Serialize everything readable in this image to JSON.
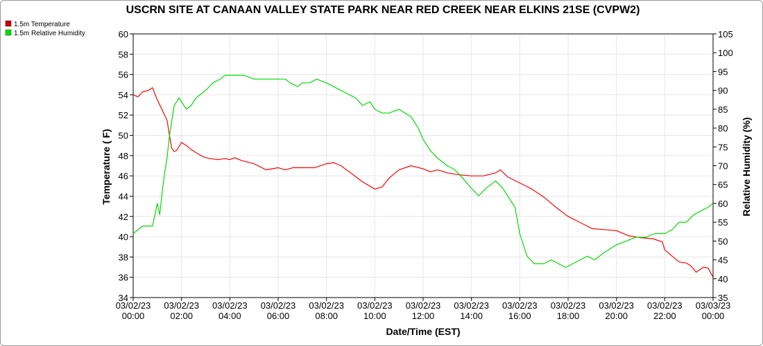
{
  "chart_data": {
    "type": "line",
    "title": "USCRN SITE AT CANAAN VALLEY STATE PARK NEAR RED CREEK NEAR ELKINS 21SE (CVPW2)",
    "xlabel": "Date/Time (EST)",
    "ylabel": "Temperature ( F)",
    "ylabel2": "Relative Humidity (%)",
    "ylim": [
      34,
      60
    ],
    "ylim2": [
      35,
      105
    ],
    "xlim_hours": [
      0,
      24
    ],
    "yticks": [
      "34",
      "36",
      "38",
      "40",
      "42",
      "44",
      "46",
      "48",
      "50",
      "52",
      "54",
      "56",
      "58",
      "60"
    ],
    "yticks2": [
      "35",
      "40",
      "45",
      "50",
      "55",
      "60",
      "65",
      "70",
      "75",
      "80",
      "85",
      "90",
      "95",
      "100",
      "105"
    ],
    "xticks": [
      {
        "date": "03/02/23",
        "time": "00:00"
      },
      {
        "date": "03/02/23",
        "time": "02:00"
      },
      {
        "date": "03/02/23",
        "time": "04:00"
      },
      {
        "date": "03/02/23",
        "time": "06:00"
      },
      {
        "date": "03/02/23",
        "time": "08:00"
      },
      {
        "date": "03/02/23",
        "time": "10:00"
      },
      {
        "date": "03/02/23",
        "time": "12:00"
      },
      {
        "date": "03/02/23",
        "time": "14:00"
      },
      {
        "date": "03/02/23",
        "time": "16:00"
      },
      {
        "date": "03/02/23",
        "time": "18:00"
      },
      {
        "date": "03/02/23",
        "time": "20:00"
      },
      {
        "date": "03/02/23",
        "time": "22:00"
      },
      {
        "date": "03/03/23",
        "time": "00:00"
      }
    ],
    "grid": true,
    "legend_placement": "top-left",
    "series": [
      {
        "name": "1.5m Temperature",
        "axis": "left",
        "color": "#ff0000",
        "x": [
          0,
          0.2,
          0.4,
          0.6,
          0.8,
          1.0,
          1.2,
          1.4,
          1.5,
          1.6,
          1.7,
          1.8,
          2.0,
          2.2,
          2.4,
          2.6,
          2.8,
          3.0,
          3.2,
          3.5,
          3.8,
          4.0,
          4.2,
          4.5,
          5.0,
          5.5,
          6.0,
          6.3,
          6.6,
          7.0,
          7.5,
          8.0,
          8.3,
          8.6,
          9.0,
          9.5,
          10.0,
          10.3,
          10.6,
          11.0,
          11.5,
          12.0,
          12.3,
          12.6,
          13.0,
          13.5,
          14.0,
          14.5,
          15.0,
          15.2,
          15.5,
          16.0,
          16.5,
          17.0,
          17.5,
          18.0,
          18.5,
          19.0,
          19.5,
          20.0,
          20.5,
          21.0,
          21.5,
          21.9,
          22.0,
          22.3,
          22.6,
          22.9,
          23.1,
          23.3,
          23.6,
          23.8,
          24.0
        ],
        "values": [
          54.0,
          53.8,
          54.3,
          54.4,
          54.7,
          53.5,
          52.5,
          51.5,
          50.0,
          48.7,
          48.4,
          48.5,
          49.3,
          49.0,
          48.6,
          48.3,
          48.0,
          47.8,
          47.7,
          47.6,
          47.7,
          47.6,
          47.8,
          47.5,
          47.2,
          46.6,
          46.8,
          46.6,
          46.8,
          46.8,
          46.8,
          47.2,
          47.3,
          47.0,
          46.3,
          45.4,
          44.7,
          44.9,
          45.8,
          46.6,
          47.0,
          46.7,
          46.4,
          46.6,
          46.3,
          46.1,
          46.0,
          46.0,
          46.3,
          46.6,
          45.9,
          45.3,
          44.7,
          43.9,
          42.9,
          42.0,
          41.4,
          40.8,
          40.7,
          40.6,
          40.1,
          39.9,
          39.8,
          39.5,
          38.7,
          38.1,
          37.5,
          37.4,
          37.1,
          36.5,
          37.0,
          36.9,
          36.0
        ]
      },
      {
        "name": "1.5m Relative Humidity",
        "axis": "right",
        "color": "#00dd00",
        "x": [
          0,
          0.2,
          0.4,
          0.6,
          0.8,
          1.0,
          1.1,
          1.2,
          1.3,
          1.4,
          1.5,
          1.7,
          1.9,
          2.0,
          2.2,
          2.4,
          2.6,
          2.8,
          3.0,
          3.3,
          3.6,
          3.8,
          4.0,
          4.3,
          4.6,
          5.0,
          5.5,
          6.0,
          6.3,
          6.5,
          6.8,
          7.0,
          7.3,
          7.6,
          8.0,
          8.3,
          8.6,
          8.9,
          9.2,
          9.5,
          9.8,
          10.0,
          10.3,
          10.6,
          11.0,
          11.5,
          11.8,
          12.0,
          12.3,
          12.6,
          13.0,
          13.3,
          13.6,
          14.0,
          14.3,
          14.6,
          15.0,
          15.3,
          15.6,
          15.8,
          16.0,
          16.3,
          16.6,
          17.0,
          17.3,
          17.6,
          17.9,
          18.2,
          18.5,
          18.8,
          19.1,
          19.5,
          20.0,
          20.4,
          20.8,
          21.2,
          21.6,
          22.0,
          22.3,
          22.6,
          22.9,
          23.2,
          23.5,
          23.8,
          24.0
        ],
        "values": [
          52,
          53,
          54,
          54,
          54,
          60,
          57,
          63,
          68,
          72,
          78,
          86,
          88,
          87,
          85,
          86,
          88,
          89,
          90,
          92,
          93,
          94,
          94,
          94,
          94,
          93,
          93,
          93,
          93,
          92,
          91,
          92,
          92,
          93,
          92,
          91,
          90,
          89,
          88,
          86,
          87,
          85,
          84,
          84,
          85,
          83,
          80,
          77,
          74,
          72,
          70,
          69,
          67,
          64,
          62,
          64,
          66,
          64,
          61,
          59,
          52,
          46,
          44,
          44,
          45,
          44,
          43,
          44,
          45,
          46,
          45,
          47,
          49,
          50,
          51,
          51,
          52,
          52,
          53,
          55,
          55,
          57,
          58,
          59,
          60
        ]
      }
    ]
  }
}
